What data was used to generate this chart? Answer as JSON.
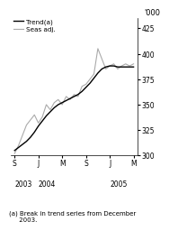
{
  "title": "",
  "ylabel_right": "'000",
  "ylim": [
    300,
    435
  ],
  "yticks": [
    300,
    325,
    350,
    375,
    400,
    425
  ],
  "xtick_labels": [
    "S",
    "J",
    "M",
    "S",
    "J",
    "M"
  ],
  "xtick_positions": [
    0,
    3,
    6,
    9,
    12,
    15
  ],
  "year_labels": [
    {
      "text": "2003",
      "x": 0
    },
    {
      "text": "2004",
      "x": 3
    },
    {
      "text": "2005",
      "x": 12
    }
  ],
  "footnote": "(a) Break in trend series from December\n     2003.",
  "legend_entries": [
    "Trend(a)",
    "Seas adj."
  ],
  "trend_color": "#000000",
  "seas_color": "#aaaaaa",
  "background_color": "#ffffff",
  "trend_data_x": [
    0,
    0.5,
    1,
    1.5,
    2,
    2.5,
    3,
    3.5,
    4,
    4.5,
    5,
    5.5,
    6,
    6.5,
    7,
    7.5,
    8,
    8.5,
    9,
    9.5,
    10,
    10.5,
    11,
    11.5,
    12,
    12.5,
    13,
    13.5,
    14,
    14.5,
    15
  ],
  "trend_data_y": [
    305,
    308,
    311,
    314,
    318,
    323,
    329,
    334,
    339,
    343,
    347,
    350,
    352,
    354,
    356,
    358,
    360,
    363,
    367,
    371,
    376,
    381,
    385,
    387,
    388,
    388,
    387,
    387,
    387,
    387,
    387
  ],
  "seas_data_x": [
    0,
    0.5,
    1,
    1.5,
    2,
    2.5,
    3,
    3.5,
    4,
    4.5,
    5,
    5.5,
    6,
    6.5,
    7,
    7.5,
    8,
    8.5,
    9,
    9.5,
    10,
    10.5,
    11,
    11.5,
    12,
    12.5,
    13,
    13.5,
    14,
    14.5,
    15
  ],
  "seas_data_y": [
    302,
    310,
    320,
    330,
    335,
    340,
    332,
    338,
    350,
    345,
    352,
    355,
    350,
    358,
    355,
    360,
    358,
    368,
    370,
    375,
    380,
    405,
    395,
    385,
    388,
    390,
    385,
    388,
    390,
    388,
    390
  ]
}
